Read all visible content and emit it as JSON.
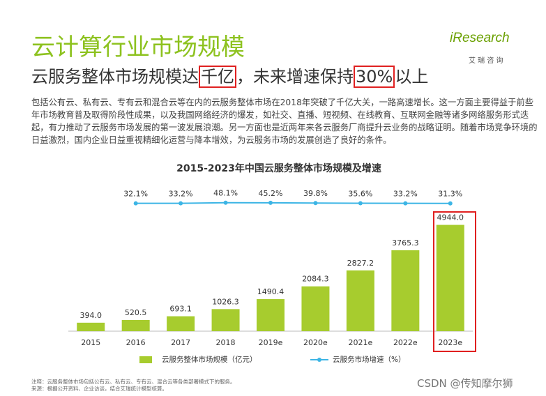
{
  "slide": {
    "title": "云计算行业市场规模",
    "subtitle": [
      "云服务整体市场规模达",
      "千亿",
      "，未来增速保持",
      "30%",
      "以上"
    ],
    "paragraph": "包括公有云、私有云、专有云和混合云等在内的云服务整体市场在2018年突破了千亿大关，一路高速增长。这一方面主要得益于前些年市场教育普及取得阶段性成果，以及我国网络经济的爆发，如社交、直播、短视频、在线教育、互联网金融等诸多网络服务形式迭起，有力推动了云服务市场发展的第一波发展浪潮。另一方面也是近两年来各云服务厂商提升云业务的战略证明。随着市场竞争环境的日益激烈，国内企业日益重视精细化运营与降本增效，为云服务市场的发展创造了良好的条件。",
    "logo": "iResearch",
    "logo_sub": "艾 瑞 咨 询",
    "notes": [
      "注释：云服务整体市场包括公有云、私有云、专有云、混合云等各类部署模式下的服务。",
      "来源：根据公开资料、企业访谈，结合艾瑞统计模型核算。"
    ],
    "watermark": "CSDN @传知摩尔狮"
  },
  "chart_data": {
    "type": "bar",
    "title": "2015-2023年中国云服务整体市场规模及增速",
    "categories": [
      "2015",
      "2016",
      "2017",
      "2018",
      "2019e",
      "2020e",
      "2021e",
      "2022e",
      "2023e"
    ],
    "series": [
      {
        "name": "云服务整体市场规模（亿元）",
        "color": "#a7cc2e",
        "values": [
          394.0,
          520.5,
          693.1,
          1026.3,
          1490.4,
          2084.3,
          2827.2,
          3765.3,
          4944.0
        ],
        "value_labels": [
          "394.0",
          "520.5",
          "693.1",
          "1026.3",
          "1490.4",
          "2084.3",
          "2827.2",
          "3765.3",
          "4944.0"
        ]
      },
      {
        "name": "云服务市场增速（%）",
        "color": "#3cb5e5",
        "type": "line",
        "axis": "y2",
        "values": [
          null,
          32.1,
          33.2,
          48.1,
          45.2,
          39.8,
          35.6,
          33.2,
          31.3
        ],
        "value_labels": [
          null,
          "32.1%",
          "33.2%",
          "48.1%",
          "45.2%",
          "39.8%",
          "35.6%",
          "33.2%",
          "31.3%"
        ]
      }
    ],
    "ylim": [
      0,
      6000
    ],
    "y2lim": [
      -3000,
      60
    ]
  }
}
